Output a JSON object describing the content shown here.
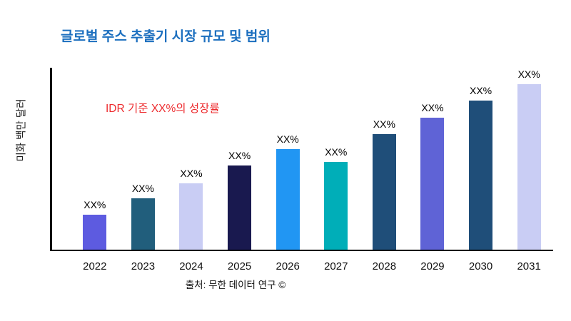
{
  "header": {
    "title": "글로벌 주스 추출기 시장 규모 및 범위",
    "title_color": "#1c6fbf"
  },
  "annotation": {
    "text": "IDR 기준 XX%의 성장률",
    "color": "#ed2c2f"
  },
  "y_axis": {
    "label": "미화 백만 달러"
  },
  "footer": {
    "source": "출처: 무한 데이터 연구 ©"
  },
  "chart_data": {
    "type": "bar",
    "title": "글로벌 주스 추출기 시장 규모 및 범위",
    "xlabel": "",
    "ylabel": "미화 백만 달러",
    "categories": [
      "2022",
      "2023",
      "2024",
      "2025",
      "2026",
      "2027",
      "2028",
      "2029",
      "2030",
      "2031"
    ],
    "values": [
      21,
      31,
      40,
      51,
      61,
      53,
      70,
      80,
      90,
      100
    ],
    "bar_labels": [
      "XX%",
      "XX%",
      "XX%",
      "XX%",
      "XX%",
      "XX%",
      "XX%",
      "XX%",
      "XX%",
      "XX%"
    ],
    "bar_colors": [
      "#5d5be0",
      "#215e7c",
      "#c9cdf4",
      "#19194f",
      "#2196f3",
      "#00aeb8",
      "#1f4e79",
      "#5f63d6",
      "#1f4e79",
      "#c9cdf4"
    ],
    "ylim": [
      0,
      110
    ],
    "grid": false,
    "legend": false,
    "annotation": "IDR 기준 XX%의 성장률",
    "source": "출처: 무한 데이터 연구 ©"
  }
}
